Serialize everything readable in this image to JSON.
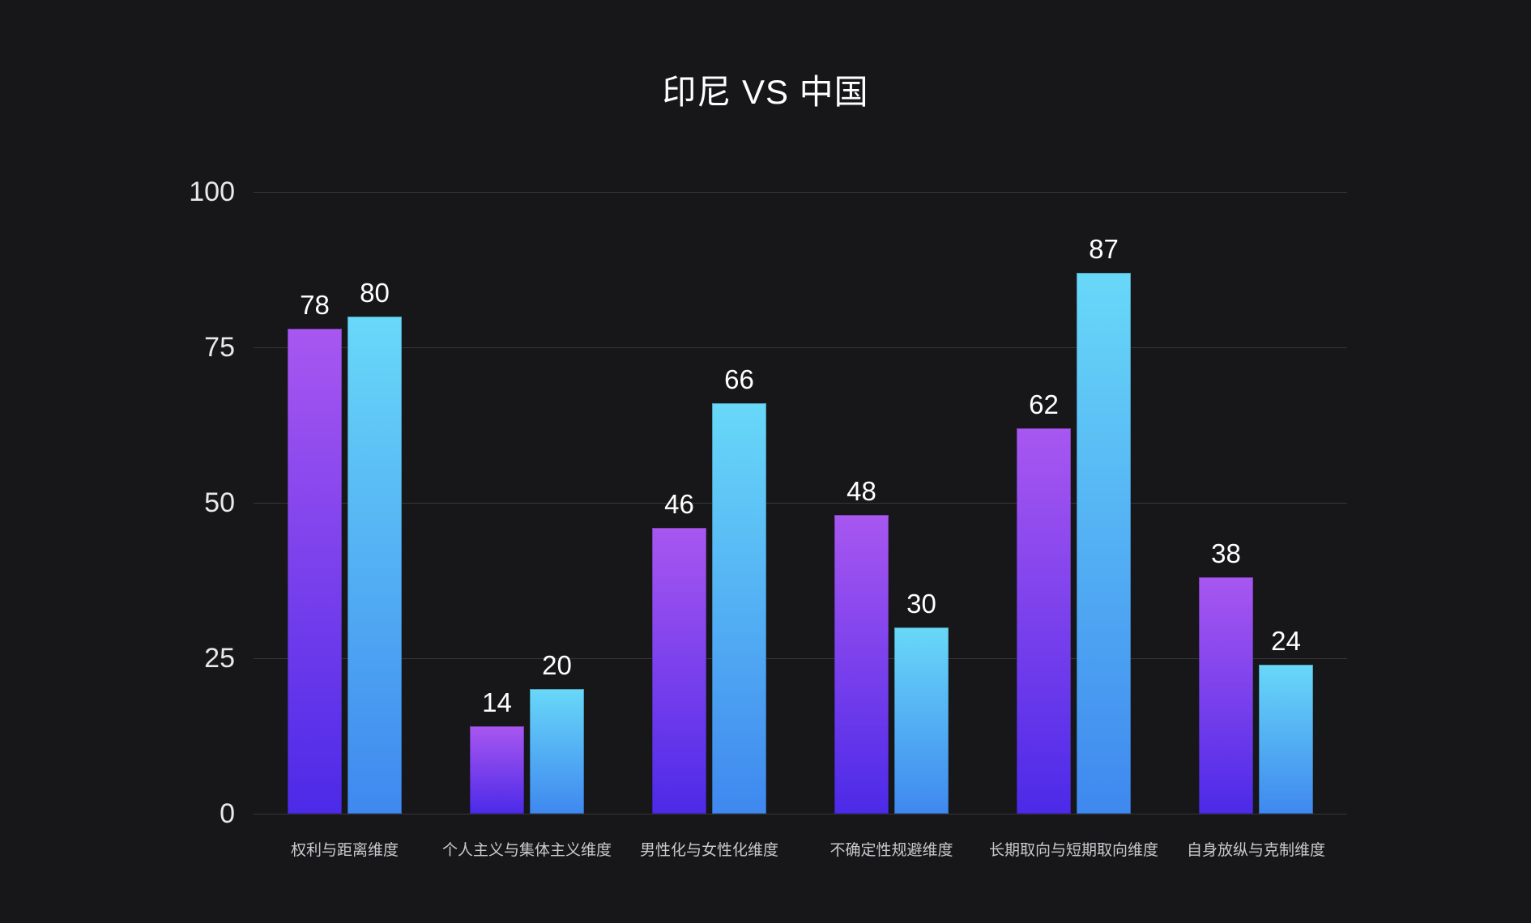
{
  "title": "印尼 VS 中国",
  "chart_data": {
    "type": "bar",
    "title": "印尼 VS 中国",
    "categories": [
      "权利与距离维度",
      "个人主义与集体主义维度",
      "男性化与女性化维度",
      "不确定性规避维度",
      "长期取向与短期取向维度",
      "自身放纵与克制维度"
    ],
    "series": [
      {
        "name": "印尼",
        "values": [
          78,
          14,
          46,
          48,
          62,
          38
        ],
        "gradient_top": "#a857f0",
        "gradient_bottom": "#4c2ae8"
      },
      {
        "name": "中国",
        "values": [
          80,
          20,
          66,
          30,
          87,
          24
        ],
        "gradient_top": "#68d8f8",
        "gradient_bottom": "#3f88ef"
      }
    ],
    "xlabel": "",
    "ylabel": "",
    "ylim": [
      0,
      100
    ],
    "yticks": [
      0,
      25,
      50,
      75,
      100
    ],
    "grid": true,
    "legend_position": "none",
    "value_labels_shown": true,
    "colors": {
      "background": "#171719",
      "gridline": "#37373b",
      "title_text": "#ffffff",
      "value_label_text": "#ffffff",
      "axis_tick_text": "#e8e8e8",
      "category_text": "#c9c9cd"
    }
  }
}
